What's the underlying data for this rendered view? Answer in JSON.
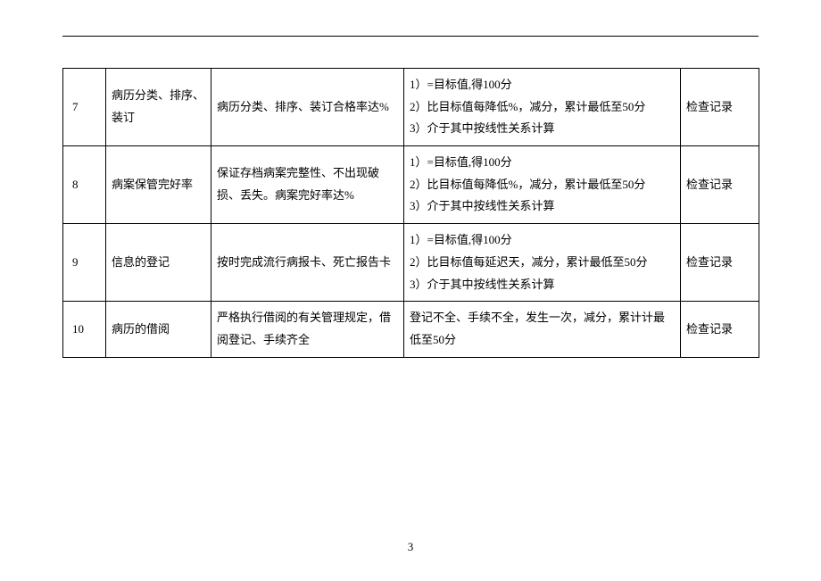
{
  "table": {
    "rows": [
      {
        "num": "7",
        "name": "病历分类、排序、装订",
        "desc": "病历分类、排序、装订合格率达%",
        "score": "1）=目标值,得100分\n2）比目标值每降低%，减分，累计最低至50分\n3）介于其中按线性关系计算",
        "check": "检查记录"
      },
      {
        "num": "8",
        "name": "病案保管完好率",
        "desc": "保证存档病案完整性、不出现破损、丢失。病案完好率达%",
        "score": "1）=目标值,得100分\n2）比目标值每降低%，减分，累计最低至50分\n3）介于其中按线性关系计算",
        "check": "检查记录"
      },
      {
        "num": "9",
        "name": "信息的登记",
        "desc": "按时完成流行病报卡、死亡报告卡",
        "score": "1）=目标值,得100分\n2）比目标值每延迟天，减分，累计最低至50分\n3）介于其中按线性关系计算",
        "check": "检查记录"
      },
      {
        "num": "10",
        "name": "病历的借阅",
        "desc": "严格执行借阅的有关管理规定，借阅登记、手续齐全",
        "score": "登记不全、手续不全，发生一次，减分，累计计最低至50分",
        "check": "检查记录"
      }
    ]
  },
  "page_number": "3"
}
